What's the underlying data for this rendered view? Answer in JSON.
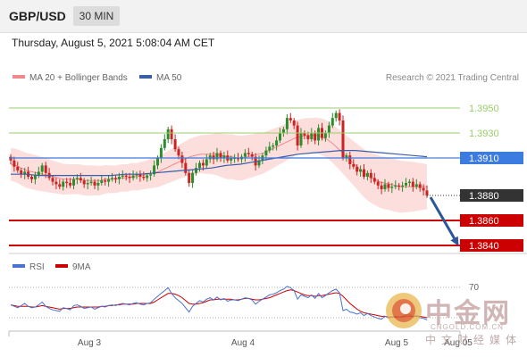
{
  "header": {
    "symbol": "GBP/USD",
    "timeframe": "30 MIN"
  },
  "timestamp": "Thursday, August 5, 2021 5:08:04 AM CET",
  "colors": {
    "ma20_bollinger": "#f08a8a",
    "ma50": "#3b5ea8",
    "candle_up": "#2e8b2e",
    "candle_down": "#cc2222",
    "level_green": "#9acd6a",
    "level_blue": "#3c7be0",
    "level_red": "#cc0000",
    "current": "#333333",
    "rsi": "#4a72d0",
    "rsi_ma": "#cc0000"
  },
  "watermark": {
    "title": "中金网",
    "site": "CNGOLD.COM.CN",
    "subtitle": "中文财经媒体"
  },
  "chart_data": [
    {
      "type": "candlestick",
      "legend": [
        {
          "name": "MA 20 + Bollinger Bands",
          "color": "#f08a8a"
        },
        {
          "name": "MA 50",
          "color": "#3b5ea8"
        }
      ],
      "credit": "Research © 2021 Trading Central",
      "xticks": [
        "Aug 3",
        "Aug 4",
        "Aug 5",
        "Aug 05"
      ],
      "ylim": [
        1.3835,
        1.3965
      ],
      "levels": [
        {
          "value": 1.395,
          "label": "1.3950",
          "kind": "resistance-green"
        },
        {
          "value": 1.393,
          "label": "1.3930",
          "kind": "resistance-green"
        },
        {
          "value": 1.391,
          "label": "1.3910",
          "kind": "pivot-blue"
        },
        {
          "value": 1.388,
          "label": "1.3880",
          "kind": "current"
        },
        {
          "value": 1.386,
          "label": "1.3860",
          "kind": "support-red"
        },
        {
          "value": 1.384,
          "label": "1.3840",
          "kind": "support-red"
        }
      ],
      "forecast": {
        "from": 1.388,
        "to": 1.384,
        "direction": "down"
      },
      "close": [
        1.3908,
        1.3903,
        1.39,
        1.3897,
        1.3899,
        1.3895,
        1.3893,
        1.3896,
        1.3899,
        1.3904,
        1.3898,
        1.3894,
        1.3891,
        1.3889,
        1.3887,
        1.3891,
        1.389,
        1.3888,
        1.3893,
        1.3894,
        1.3892,
        1.3889,
        1.389,
        1.3891,
        1.3888,
        1.389,
        1.3892,
        1.3891,
        1.3893,
        1.3894,
        1.3893,
        1.3895,
        1.3896,
        1.3895,
        1.3894,
        1.3896,
        1.3897,
        1.3895,
        1.3894,
        1.3896,
        1.3897,
        1.3904,
        1.391,
        1.3918,
        1.3925,
        1.3933,
        1.3925,
        1.3917,
        1.3912,
        1.3906,
        1.3898,
        1.389,
        1.3898,
        1.3902,
        1.3906,
        1.3904,
        1.3909,
        1.3912,
        1.3909,
        1.3914,
        1.391,
        1.3912,
        1.3908,
        1.391,
        1.391,
        1.3909,
        1.3911,
        1.3914,
        1.3913,
        1.3911,
        1.3904,
        1.3908,
        1.3912,
        1.3916,
        1.3919,
        1.392,
        1.3924,
        1.393,
        1.3933,
        1.3942,
        1.394,
        1.3936,
        1.392,
        1.393,
        1.3928,
        1.3925,
        1.393,
        1.3924,
        1.3934,
        1.3926,
        1.393,
        1.3936,
        1.3942,
        1.3946,
        1.394,
        1.391,
        1.3912,
        1.3905,
        1.3903,
        1.3899,
        1.3901,
        1.3895,
        1.3898,
        1.3894,
        1.3891,
        1.3888,
        1.3885,
        1.3889,
        1.3886,
        1.3887,
        1.3888,
        1.3887,
        1.3888,
        1.389,
        1.3891,
        1.3887,
        1.3889,
        1.3886,
        1.3884,
        1.388
      ],
      "ma20": [
        1.3905,
        1.3904,
        1.3902,
        1.39,
        1.3899,
        1.3898,
        1.3897,
        1.3896,
        1.3895,
        1.3894,
        1.3893,
        1.3893,
        1.3893,
        1.3893,
        1.3892,
        1.3892,
        1.3892,
        1.3892,
        1.3893,
        1.3893,
        1.3893,
        1.3894,
        1.3894,
        1.3895,
        1.3895,
        1.3896,
        1.3897,
        1.3898,
        1.3899,
        1.3901,
        1.3903,
        1.3905,
        1.3907,
        1.3909,
        1.3911,
        1.3912,
        1.3913,
        1.3913,
        1.3913,
        1.3913,
        1.3912,
        1.3911,
        1.3911,
        1.391,
        1.391,
        1.3911,
        1.3912,
        1.3913,
        1.3914,
        1.3916,
        1.3918,
        1.392,
        1.3922,
        1.3924,
        1.3926,
        1.3927,
        1.3928,
        1.3928,
        1.3928,
        1.3927,
        1.3925,
        1.3922,
        1.3918,
        1.3914,
        1.391,
        1.3906,
        1.3902,
        1.3898,
        1.3895,
        1.3893,
        1.3891,
        1.389,
        1.3889,
        1.3888,
        1.3887,
        1.3887,
        1.3887,
        1.3887,
        1.3887,
        1.3887
      ],
      "ma50": [
        1.3897,
        1.3897,
        1.3896,
        1.3896,
        1.3896,
        1.3896,
        1.3896,
        1.3896,
        1.3897,
        1.3897,
        1.3898,
        1.3899,
        1.39,
        1.3901,
        1.3902,
        1.3904,
        1.3905,
        1.3907,
        1.3909,
        1.3911,
        1.3913,
        1.3914,
        1.3915,
        1.3916,
        1.3916,
        1.3915,
        1.3914,
        1.3913,
        1.3912,
        1.3911
      ],
      "band_halfwidth": [
        13,
        14,
        14,
        13,
        12,
        12,
        12,
        11,
        11,
        11,
        12,
        13,
        14,
        15,
        16,
        18,
        18,
        17,
        16,
        15,
        14,
        14,
        15,
        16,
        18,
        20,
        21,
        21,
        20,
        18
      ]
    },
    {
      "type": "line",
      "legend": [
        {
          "name": "RSI",
          "color": "#4a72d0"
        },
        {
          "name": "9MA",
          "color": "#cc0000"
        }
      ],
      "yticks": [
        "70"
      ],
      "rsi": [
        48,
        46,
        44,
        47,
        50,
        46,
        44,
        45,
        48,
        52,
        46,
        43,
        41,
        40,
        39,
        44,
        43,
        41,
        47,
        48,
        46,
        43,
        44,
        45,
        42,
        44,
        46,
        45,
        47,
        48,
        47,
        49,
        50,
        49,
        48,
        50,
        51,
        49,
        48,
        50,
        51,
        56,
        60,
        64,
        68,
        72,
        64,
        58,
        54,
        50,
        44,
        38,
        46,
        50,
        54,
        52,
        56,
        58,
        55,
        59,
        55,
        57,
        53,
        55,
        55,
        54,
        56,
        58,
        57,
        55,
        49,
        53,
        56,
        59,
        62,
        63,
        65,
        68,
        70,
        74,
        72,
        68,
        56,
        62,
        60,
        58,
        62,
        57,
        64,
        58,
        61,
        65,
        68,
        70,
        65,
        40,
        42,
        38,
        37,
        35,
        37,
        33,
        36,
        33,
        31,
        29,
        28,
        32,
        30,
        31,
        32,
        31,
        32,
        34,
        35,
        31,
        33,
        30,
        29,
        27
      ],
      "rsi_ma": [
        48,
        47,
        46,
        46,
        46,
        46,
        45,
        45,
        46,
        47,
        46,
        45,
        44,
        43,
        42,
        43,
        43,
        43,
        44,
        45,
        45,
        45,
        45,
        45,
        45,
        45,
        46,
        46,
        47,
        47,
        48,
        48,
        49,
        49,
        49,
        49,
        50,
        50,
        50,
        50,
        50,
        52,
        55,
        58,
        61,
        64,
        64,
        63,
        61,
        58,
        54,
        50,
        49,
        49,
        50,
        51,
        53,
        55,
        55,
        56,
        56,
        56,
        56,
        56,
        55,
        55,
        56,
        57,
        57,
        56,
        55,
        55,
        56,
        57,
        58,
        60,
        62,
        64,
        66,
        68,
        69,
        68,
        66,
        64,
        62,
        61,
        61,
        60,
        61,
        61,
        62,
        63,
        64,
        65,
        64,
        60,
        55,
        50,
        46,
        42,
        39,
        37,
        36,
        35,
        34,
        33,
        32,
        32,
        31,
        31,
        31,
        31,
        31,
        32,
        32,
        32,
        32,
        32,
        31,
        30
      ]
    }
  ]
}
